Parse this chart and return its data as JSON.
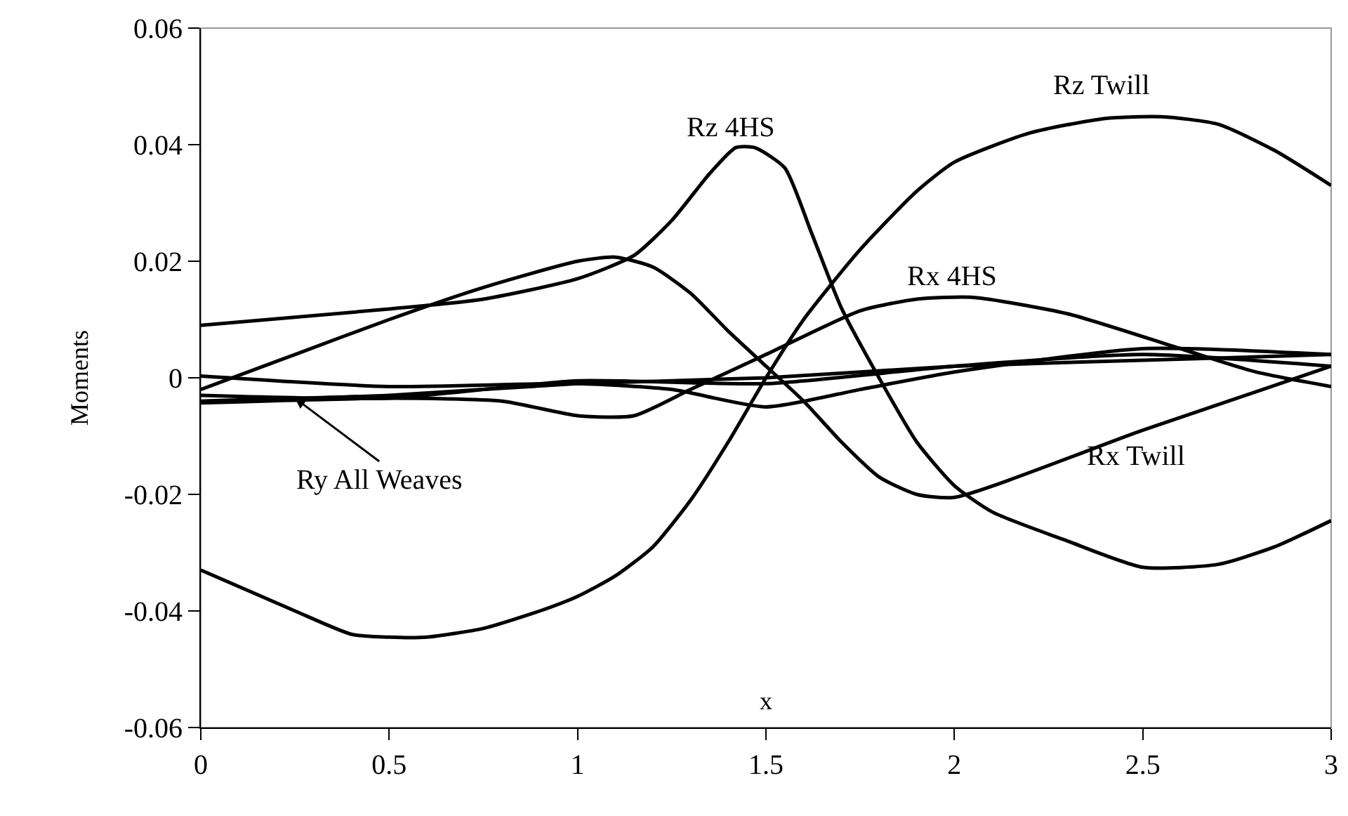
{
  "chart_data": {
    "type": "line",
    "xlabel": "x",
    "ylabel": "Moments",
    "xlim": [
      0,
      3
    ],
    "xticks": [
      0,
      0.5,
      1,
      1.5,
      2,
      2.5,
      3
    ],
    "ylim": [
      -0.06,
      0.06
    ],
    "yticks": [
      -0.06,
      -0.04,
      -0.02,
      0,
      0.02,
      0.04,
      0.06
    ],
    "grid": false,
    "marker": "none",
    "line_style": "solid",
    "series": [
      {
        "color": "#000000",
        "x": [
          0,
          0.25,
          0.4,
          0.5,
          0.6,
          0.75,
          0.9,
          1.0,
          1.1,
          1.2,
          1.3,
          1.4,
          1.5,
          1.6,
          1.75,
          1.9,
          2.0,
          2.2,
          2.4,
          2.55,
          2.7,
          2.85,
          3.0
        ],
        "values": [
          -0.033,
          -0.04,
          -0.044,
          -0.0445,
          -0.0445,
          -0.043,
          -0.04,
          -0.0375,
          -0.034,
          -0.029,
          -0.021,
          -0.011,
          0.0,
          0.01,
          0.022,
          0.032,
          0.037,
          0.042,
          0.0445,
          0.0448,
          0.0435,
          0.039,
          0.033
        ]
      },
      {
        "color": "#000000",
        "x": [
          0,
          0.5,
          0.75,
          1.0,
          1.15,
          1.25,
          1.35,
          1.42,
          1.47,
          1.55,
          1.62,
          1.7,
          1.8,
          1.9,
          2.0,
          2.1,
          2.3,
          2.5,
          2.7,
          2.85,
          3.0
        ],
        "values": [
          0.009,
          0.0118,
          0.0135,
          0.017,
          0.021,
          0.027,
          0.035,
          0.0395,
          0.0395,
          0.036,
          0.025,
          0.012,
          0.0,
          -0.011,
          -0.0185,
          -0.023,
          -0.028,
          -0.0325,
          -0.032,
          -0.029,
          -0.0245
        ]
      },
      {
        "color": "#000000",
        "x": [
          0,
          0.25,
          0.5,
          0.75,
          1.0,
          1.1,
          1.2,
          1.3,
          1.4,
          1.5,
          1.6,
          1.7,
          1.8,
          1.9,
          2.0,
          2.5,
          3.0
        ],
        "values": [
          -0.002,
          0.004,
          0.01,
          0.0155,
          0.02,
          0.0207,
          0.019,
          0.0145,
          0.008,
          0.002,
          -0.004,
          -0.011,
          -0.017,
          -0.02,
          -0.0205,
          -0.009,
          0.002
        ]
      },
      {
        "color": "#000000",
        "x": [
          0,
          0.5,
          0.8,
          1.0,
          1.15,
          1.3,
          1.5,
          1.75,
          1.9,
          2.05,
          2.3,
          2.6,
          2.8,
          3.0
        ],
        "values": [
          -0.0043,
          -0.0035,
          -0.004,
          -0.0065,
          -0.0065,
          -0.002,
          0.004,
          0.0115,
          0.0135,
          0.0138,
          0.011,
          0.005,
          0.001,
          -0.0015
        ]
      },
      {
        "color": "#000000",
        "x": [
          0,
          0.5,
          1.0,
          1.25,
          1.5,
          1.75,
          2.0,
          2.5,
          3.0
        ],
        "values": [
          0.0003,
          -0.0015,
          -0.001,
          -0.002,
          -0.005,
          -0.002,
          0.001,
          0.005,
          0.004
        ]
      },
      {
        "color": "#000000",
        "x": [
          0,
          0.5,
          1.0,
          1.5,
          2.0,
          2.5,
          3.0
        ],
        "values": [
          -0.004,
          -0.003,
          -0.001,
          0.0,
          0.002,
          0.003,
          0.004
        ]
      },
      {
        "color": "#000000",
        "x": [
          0,
          0.5,
          1.0,
          1.5,
          2.0,
          2.5,
          3.0
        ],
        "values": [
          -0.003,
          -0.0035,
          -0.0005,
          -0.001,
          0.002,
          0.004,
          0.002
        ]
      }
    ],
    "annotations": [
      "Rz 4HS",
      "Rz Twill",
      "Rx 4HS",
      "Rx Twill",
      {
        "text": "Ry All Weaves",
        "x": 0.25,
        "y": -0.0035
      }
    ]
  }
}
